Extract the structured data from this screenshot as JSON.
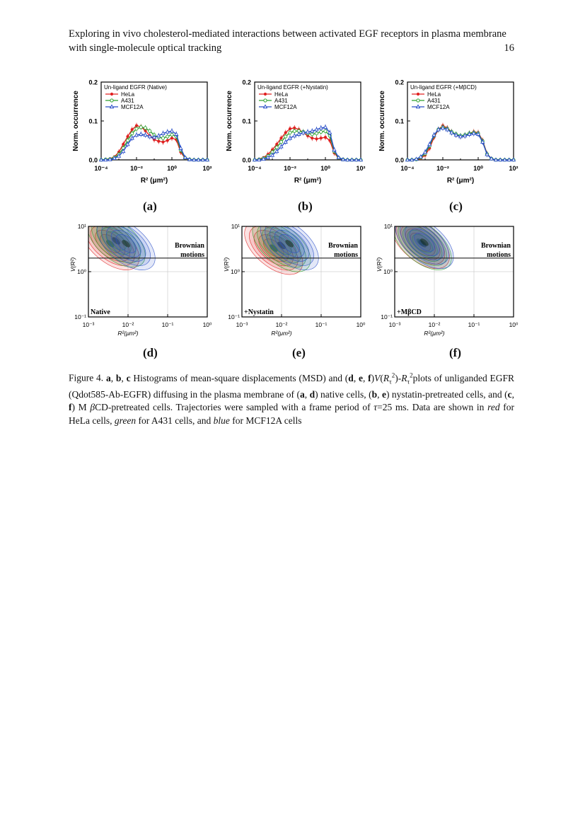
{
  "header": {
    "title": "Exploring in vivo cholesterol-mediated interactions between activated EGF receptors in plasma membrane with single-molecule optical tracking",
    "page_number": "16"
  },
  "panel_labels": [
    "(a)",
    "(b)",
    "(c)",
    "(d)",
    "(e)",
    "(f)"
  ],
  "colors": {
    "HeLa": "#e02020",
    "A431": "#2ea02e",
    "MCF12A": "#2a4fc8"
  },
  "chart_data": [
    {
      "panel": "a",
      "type": "line",
      "title": "Un-ligand EGFR (Native)",
      "xlabel": "R² (μm²)",
      "ylabel": "Norm. occurrence",
      "x_log10": [
        -4,
        -3.75,
        -3.5,
        -3.25,
        -3,
        -2.75,
        -2.5,
        -2.25,
        -2,
        -1.75,
        -1.5,
        -1.25,
        -1,
        -0.75,
        -0.5,
        -0.25,
        0,
        0.25,
        0.5,
        0.75,
        1,
        1.25,
        1.5,
        1.75,
        2
      ],
      "xtick_labels": [
        "10⁻⁴",
        "10⁻²",
        "10⁰",
        "10²"
      ],
      "ytick_labels": [
        "0.0",
        "0.1",
        "0.2"
      ],
      "ylim": [
        0,
        0.2
      ],
      "series": [
        {
          "name": "HeLa",
          "marker": "circle",
          "values": [
            0.0,
            0.001,
            0.003,
            0.008,
            0.02,
            0.04,
            0.06,
            0.078,
            0.088,
            0.085,
            0.075,
            0.062,
            0.052,
            0.048,
            0.046,
            0.05,
            0.056,
            0.052,
            0.02,
            0.004,
            0.001,
            0.0,
            0.0,
            0.0,
            0.0
          ]
        },
        {
          "name": "A431",
          "marker": "circle-open",
          "values": [
            0.0,
            0.001,
            0.002,
            0.006,
            0.014,
            0.03,
            0.05,
            0.068,
            0.08,
            0.084,
            0.082,
            0.074,
            0.064,
            0.058,
            0.056,
            0.06,
            0.065,
            0.06,
            0.025,
            0.005,
            0.001,
            0.0,
            0.0,
            0.0,
            0.0
          ]
        },
        {
          "name": "MCF12A",
          "marker": "triangle-open",
          "values": [
            0.0,
            0.0,
            0.001,
            0.004,
            0.01,
            0.022,
            0.04,
            0.056,
            0.064,
            0.066,
            0.064,
            0.06,
            0.058,
            0.062,
            0.068,
            0.072,
            0.074,
            0.066,
            0.03,
            0.006,
            0.001,
            0.0,
            0.0,
            0.0,
            0.0
          ]
        }
      ]
    },
    {
      "panel": "b",
      "type": "line",
      "title": "Un-ligand EGFR (+Nystatin)",
      "xlabel": "R² (μm²)",
      "ylabel": "Norm. occurrence",
      "x_log10": [
        -4,
        -3.75,
        -3.5,
        -3.25,
        -3,
        -2.75,
        -2.5,
        -2.25,
        -2,
        -1.75,
        -1.5,
        -1.25,
        -1,
        -0.75,
        -0.5,
        -0.25,
        0,
        0.25,
        0.5,
        0.75,
        1,
        1.25,
        1.5,
        1.75,
        2
      ],
      "xtick_labels": [
        "10⁻⁴",
        "10⁻²",
        "10⁰",
        "10²"
      ],
      "ytick_labels": [
        "0.0",
        "0.1",
        "0.2"
      ],
      "ylim": [
        0,
        0.2
      ],
      "series": [
        {
          "name": "HeLa",
          "marker": "circle",
          "values": [
            0.0,
            0.002,
            0.006,
            0.014,
            0.026,
            0.04,
            0.056,
            0.07,
            0.08,
            0.082,
            0.078,
            0.07,
            0.062,
            0.056,
            0.054,
            0.056,
            0.058,
            0.05,
            0.018,
            0.004,
            0.001,
            0.0,
            0.0,
            0.0,
            0.0
          ]
        },
        {
          "name": "A431",
          "marker": "circle-open",
          "values": [
            0.0,
            0.001,
            0.004,
            0.01,
            0.02,
            0.032,
            0.046,
            0.06,
            0.07,
            0.074,
            0.074,
            0.072,
            0.068,
            0.066,
            0.068,
            0.072,
            0.074,
            0.062,
            0.022,
            0.005,
            0.001,
            0.0,
            0.0,
            0.0,
            0.0
          ]
        },
        {
          "name": "MCF12A",
          "marker": "triangle-open",
          "values": [
            0.0,
            0.0,
            0.002,
            0.006,
            0.012,
            0.022,
            0.034,
            0.046,
            0.056,
            0.062,
            0.066,
            0.07,
            0.072,
            0.074,
            0.078,
            0.082,
            0.084,
            0.07,
            0.026,
            0.006,
            0.001,
            0.0,
            0.0,
            0.0,
            0.0
          ]
        }
      ]
    },
    {
      "panel": "c",
      "type": "line",
      "title": "Un-ligand EGFR (+MβCD)",
      "xlabel": "R² (μm²)",
      "ylabel": "Norm. occurrence",
      "x_log10": [
        -4,
        -3.75,
        -3.5,
        -3.25,
        -3,
        -2.75,
        -2.5,
        -2.25,
        -2,
        -1.75,
        -1.5,
        -1.25,
        -1,
        -0.75,
        -0.5,
        -0.25,
        0,
        0.25,
        0.5,
        0.75,
        1,
        1.25,
        1.5,
        1.75,
        2
      ],
      "xtick_labels": [
        "10⁻⁴",
        "10⁻²",
        "10⁰",
        "10²"
      ],
      "ytick_labels": [
        "0.0",
        "0.1",
        "0.2"
      ],
      "ylim": [
        0,
        0.2
      ],
      "series": [
        {
          "name": "HeLa",
          "marker": "circle",
          "values": [
            0.0,
            0.0,
            0.001,
            0.004,
            0.012,
            0.03,
            0.058,
            0.078,
            0.088,
            0.082,
            0.072,
            0.064,
            0.06,
            0.062,
            0.068,
            0.072,
            0.07,
            0.05,
            0.016,
            0.003,
            0.0,
            0.0,
            0.0,
            0.0,
            0.0
          ]
        },
        {
          "name": "A431",
          "marker": "circle-open",
          "values": [
            0.0,
            0.0,
            0.001,
            0.006,
            0.016,
            0.036,
            0.062,
            0.078,
            0.084,
            0.08,
            0.072,
            0.066,
            0.062,
            0.064,
            0.068,
            0.07,
            0.068,
            0.048,
            0.015,
            0.003,
            0.0,
            0.0,
            0.0,
            0.0,
            0.0
          ]
        },
        {
          "name": "MCF12A",
          "marker": "triangle-open",
          "values": [
            0.0,
            0.0,
            0.002,
            0.008,
            0.02,
            0.04,
            0.064,
            0.078,
            0.082,
            0.078,
            0.07,
            0.064,
            0.06,
            0.062,
            0.066,
            0.068,
            0.066,
            0.046,
            0.014,
            0.003,
            0.0,
            0.0,
            0.0,
            0.0,
            0.0
          ]
        }
      ]
    },
    {
      "panel": "d",
      "type": "contour",
      "xlabel": "R²(μm²)",
      "ylabel": "V(R²)",
      "xtick_labels": [
        "10⁻³",
        "10⁻²",
        "10⁻¹",
        "10⁰"
      ],
      "ytick_labels": [
        "10¹",
        "10⁰",
        "10⁻¹"
      ],
      "xlim_log10": [
        -3,
        0
      ],
      "ylim_log10": [
        -1,
        1
      ],
      "reference_line_log10": 0.3,
      "annotation": "Brownian motions",
      "condition_label": "Native"
    },
    {
      "panel": "e",
      "type": "contour",
      "xlabel": "R²(μm²)",
      "ylabel": "V(R²)",
      "xtick_labels": [
        "10⁻³",
        "10⁻²",
        "10⁻¹",
        "10⁰"
      ],
      "ytick_labels": [
        "10¹",
        "10⁰",
        "10⁻¹"
      ],
      "xlim_log10": [
        -3,
        0
      ],
      "ylim_log10": [
        -1,
        1
      ],
      "reference_line_log10": 0.3,
      "annotation": "Brownian motions",
      "condition_label": "+Nystatin"
    },
    {
      "panel": "f",
      "type": "contour",
      "xlabel": "R²(μm²)",
      "ylabel": "V(R²)",
      "xtick_labels": [
        "10⁻³",
        "10⁻²",
        "10⁻¹",
        "10⁰"
      ],
      "ytick_labels": [
        "10¹",
        "10⁰",
        "10⁻¹"
      ],
      "xlim_log10": [
        -3,
        0
      ],
      "ylim_log10": [
        -1,
        1
      ],
      "reference_line_log10": 0.3,
      "annotation": "Brownian motions",
      "condition_label": "+MβCD"
    }
  ],
  "caption": {
    "label": "Figure 4.",
    "parts": [
      {
        "b": "a"
      },
      {
        "t": ", "
      },
      {
        "b": "b"
      },
      {
        "t": ", "
      },
      {
        "b": "c"
      },
      {
        "t": " Histograms of mean-square displacements (MSD) and ("
      },
      {
        "b": "d"
      },
      {
        "t": ", "
      },
      {
        "b": "e"
      },
      {
        "t": ", "
      },
      {
        "b": "f"
      },
      {
        "t": ")"
      },
      {
        "i": "V"
      },
      {
        "t": "("
      },
      {
        "i": "R"
      },
      {
        "sub": "τ"
      },
      {
        "sup": "2"
      },
      {
        "t": ")-"
      },
      {
        "i": "R"
      },
      {
        "sub": "τ"
      },
      {
        "sup": "2"
      },
      {
        "t": "plots of unliganded EGFR (Qdot585-Ab-EGFR) diffusing in the plasma membrane of ("
      },
      {
        "b": "a"
      },
      {
        "t": ", "
      },
      {
        "b": "d"
      },
      {
        "t": ") native cells, ("
      },
      {
        "b": "b"
      },
      {
        "t": ", "
      },
      {
        "b": "e"
      },
      {
        "t": ") nystatin-pretreated cells, and ("
      },
      {
        "b": "c"
      },
      {
        "t": ", "
      },
      {
        "b": "f"
      },
      {
        "t": ") M "
      },
      {
        "i": "β"
      },
      {
        "t": "CD-pretreated cells. Trajectories were sampled with a frame period of "
      },
      {
        "i": "τ"
      },
      {
        "t": "=25 ms. Data are shown in "
      },
      {
        "i": "red"
      },
      {
        "t": " for HeLa cells, "
      },
      {
        "i": "green"
      },
      {
        "t": " for A431 cells, and "
      },
      {
        "i": "blue"
      },
      {
        "t": " for MCF12A cells"
      }
    ]
  }
}
